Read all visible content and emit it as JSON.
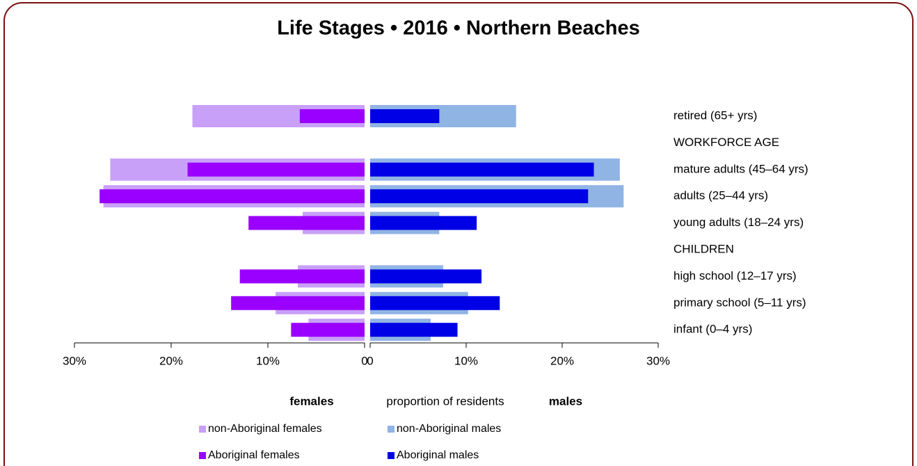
{
  "chart_data": {
    "type": "pyramid",
    "title": "Life Stages • 2016 • Northern Beaches",
    "xlabel": "proportion of residents",
    "female_label": "females",
    "male_label": "males",
    "categories": [
      "retired (65+ yrs)",
      "WORKFORCE AGE",
      "mature adults (45–64 yrs)",
      "adults (25–44 yrs)",
      "young adults (18–24 yrs)",
      "CHILDREN",
      "high school (12–17 yrs)",
      "primary school (5–11 yrs)",
      "infant (0–4 yrs)"
    ],
    "series": [
      {
        "name": "non-Aboriginal females",
        "side": "female",
        "color": "#c8a0f8",
        "values": [
          17.8,
          null,
          26.3,
          27.0,
          6.4,
          null,
          6.9,
          9.2,
          5.8
        ]
      },
      {
        "name": "non-Aboriginal males",
        "side": "male",
        "color": "#90b4e4",
        "values": [
          15.2,
          null,
          26.0,
          26.4,
          7.2,
          null,
          7.6,
          10.2,
          6.3
        ]
      },
      {
        "name": "Aboriginal females",
        "side": "female",
        "color": "#9a00ff",
        "values": [
          6.7,
          null,
          18.3,
          27.4,
          12.0,
          null,
          12.9,
          13.8,
          7.6
        ]
      },
      {
        "name": "Aboriginal males",
        "side": "male",
        "color": "#0000e6",
        "values": [
          7.2,
          null,
          23.3,
          22.7,
          11.1,
          null,
          11.6,
          13.5,
          9.1
        ]
      }
    ],
    "xlim": [
      0,
      30
    ],
    "female_xticks": [
      {
        "value": 30,
        "label": "30%"
      },
      {
        "value": 20,
        "label": "20%"
      },
      {
        "value": 10,
        "label": "10%"
      },
      0
    ],
    "male_xticks": [
      0,
      {
        "value": 10,
        "label": "10%"
      },
      {
        "value": 20,
        "label": "20%"
      },
      {
        "value": 30,
        "label": "30%"
      }
    ],
    "female_color": "#e00000",
    "male_color": "#0000e6"
  }
}
